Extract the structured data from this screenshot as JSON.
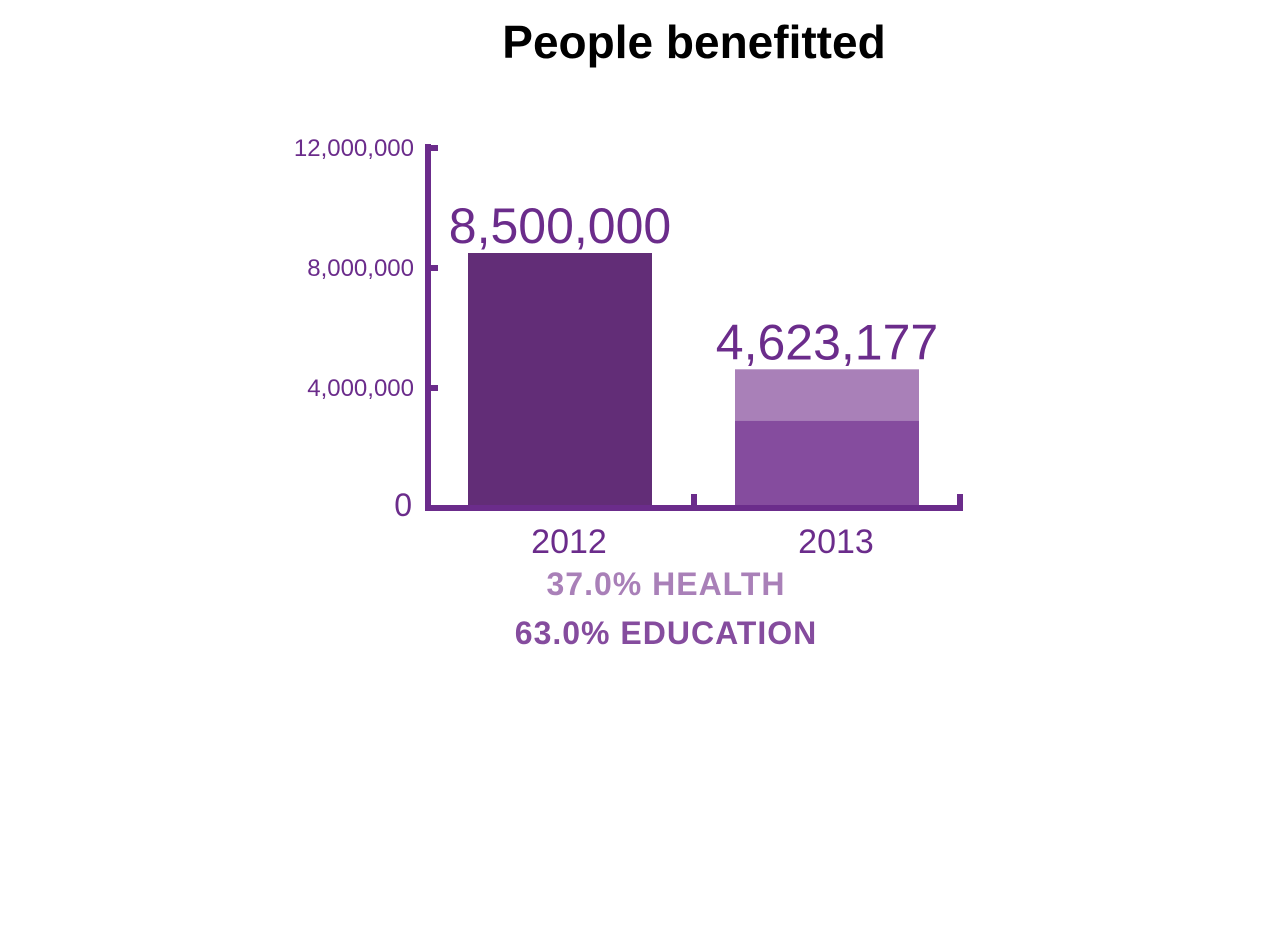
{
  "chart_data": {
    "type": "bar",
    "title": "People benefitted",
    "xlabel": "",
    "ylabel": "",
    "ylim": [
      0,
      12000000
    ],
    "y_ticks": [
      {
        "value": 0,
        "label": "0"
      },
      {
        "value": 4000000,
        "label": "4,000,000"
      },
      {
        "value": 8000000,
        "label": "8,000,000"
      },
      {
        "value": 12000000,
        "label": "12,000,000"
      }
    ],
    "categories": [
      "2012",
      "2013"
    ],
    "values": [
      8500000,
      4623177
    ],
    "value_labels": [
      "8,500,000",
      "4,623,177"
    ],
    "breakdown_2013": [
      {
        "name": "EDUCATION",
        "share": 0.63,
        "label": "63.0% EDUCATION",
        "color": "#854c9e"
      },
      {
        "name": "HEALTH",
        "share": 0.37,
        "label": "37.0% HEALTH",
        "color": "#a980b8"
      }
    ],
    "colors": {
      "text": "#6b2c8b",
      "axis": "#6b2c8b",
      "bar_2012": "#622d77",
      "education": "#854c9e",
      "health": "#a980b8"
    },
    "grid": false
  }
}
